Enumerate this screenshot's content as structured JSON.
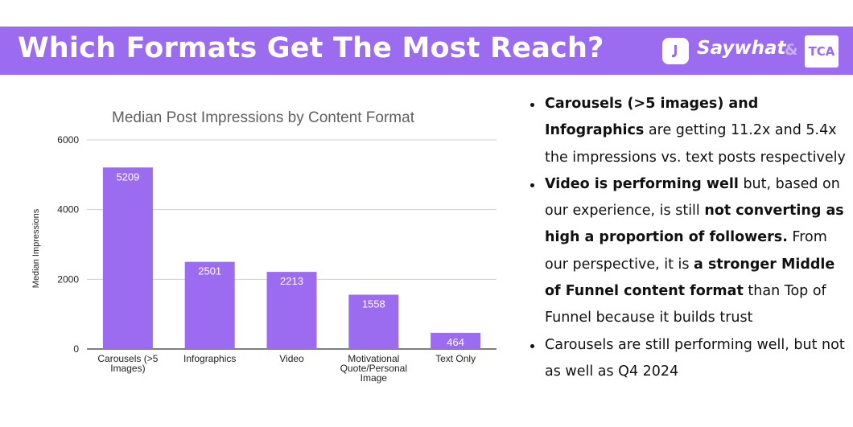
{
  "header": {
    "title": "Which Formats Get The Most Reach?",
    "brand_name": "Saywhat",
    "brand_amp": "&",
    "partner_logo": "TCA",
    "brand_icon": "saywhat-logo-icon"
  },
  "colors": {
    "accent": "#9b6cf0",
    "bar": "#9b6cf0"
  },
  "chart_data": {
    "type": "bar",
    "title": "Median Post Impressions by Content Format",
    "xlabel": "",
    "ylabel": "Median Impressions",
    "categories": [
      "Carousels (>5 Images)",
      "Infographics",
      "Video",
      "Motivational Quote/Personal Image",
      "Text Only"
    ],
    "category_lines": [
      [
        "Carousels (>5",
        "Images)"
      ],
      [
        "Infographics"
      ],
      [
        "Video"
      ],
      [
        "Motivational",
        "Quote/Personal",
        "Image"
      ],
      [
        "Text Only"
      ]
    ],
    "values": [
      5209,
      2501,
      2213,
      1558,
      464
    ],
    "value_labels": [
      "5209",
      "2501",
      "2213",
      "1558",
      "464"
    ],
    "ylim": [
      0,
      6000
    ],
    "yticks": [
      0,
      2000,
      4000,
      6000
    ],
    "ytick_labels": [
      "0",
      "2000",
      "4000",
      "6000"
    ],
    "grid": true,
    "legend": "none"
  },
  "bullets": [
    [
      {
        "text": "Carousels (>5 images) and Infographics",
        "bold": true
      },
      {
        "text": " are getting 11.2x and 5.4x the impressions vs. text posts respectively",
        "bold": false
      }
    ],
    [
      {
        "text": "Video is performing well",
        "bold": true
      },
      {
        "text": " but, based on our experience, is still ",
        "bold": false
      },
      {
        "text": "not converting as high a proportion of followers.",
        "bold": true
      },
      {
        "text": " From our perspective, it is ",
        "bold": false
      },
      {
        "text": "a stronger Middle of Funnel content format",
        "bold": true
      },
      {
        "text": " than Top of Funnel because it builds trust",
        "bold": false
      }
    ],
    [
      {
        "text": "Carousels are still performing well, but not as well as Q4 2024",
        "bold": false
      }
    ]
  ]
}
